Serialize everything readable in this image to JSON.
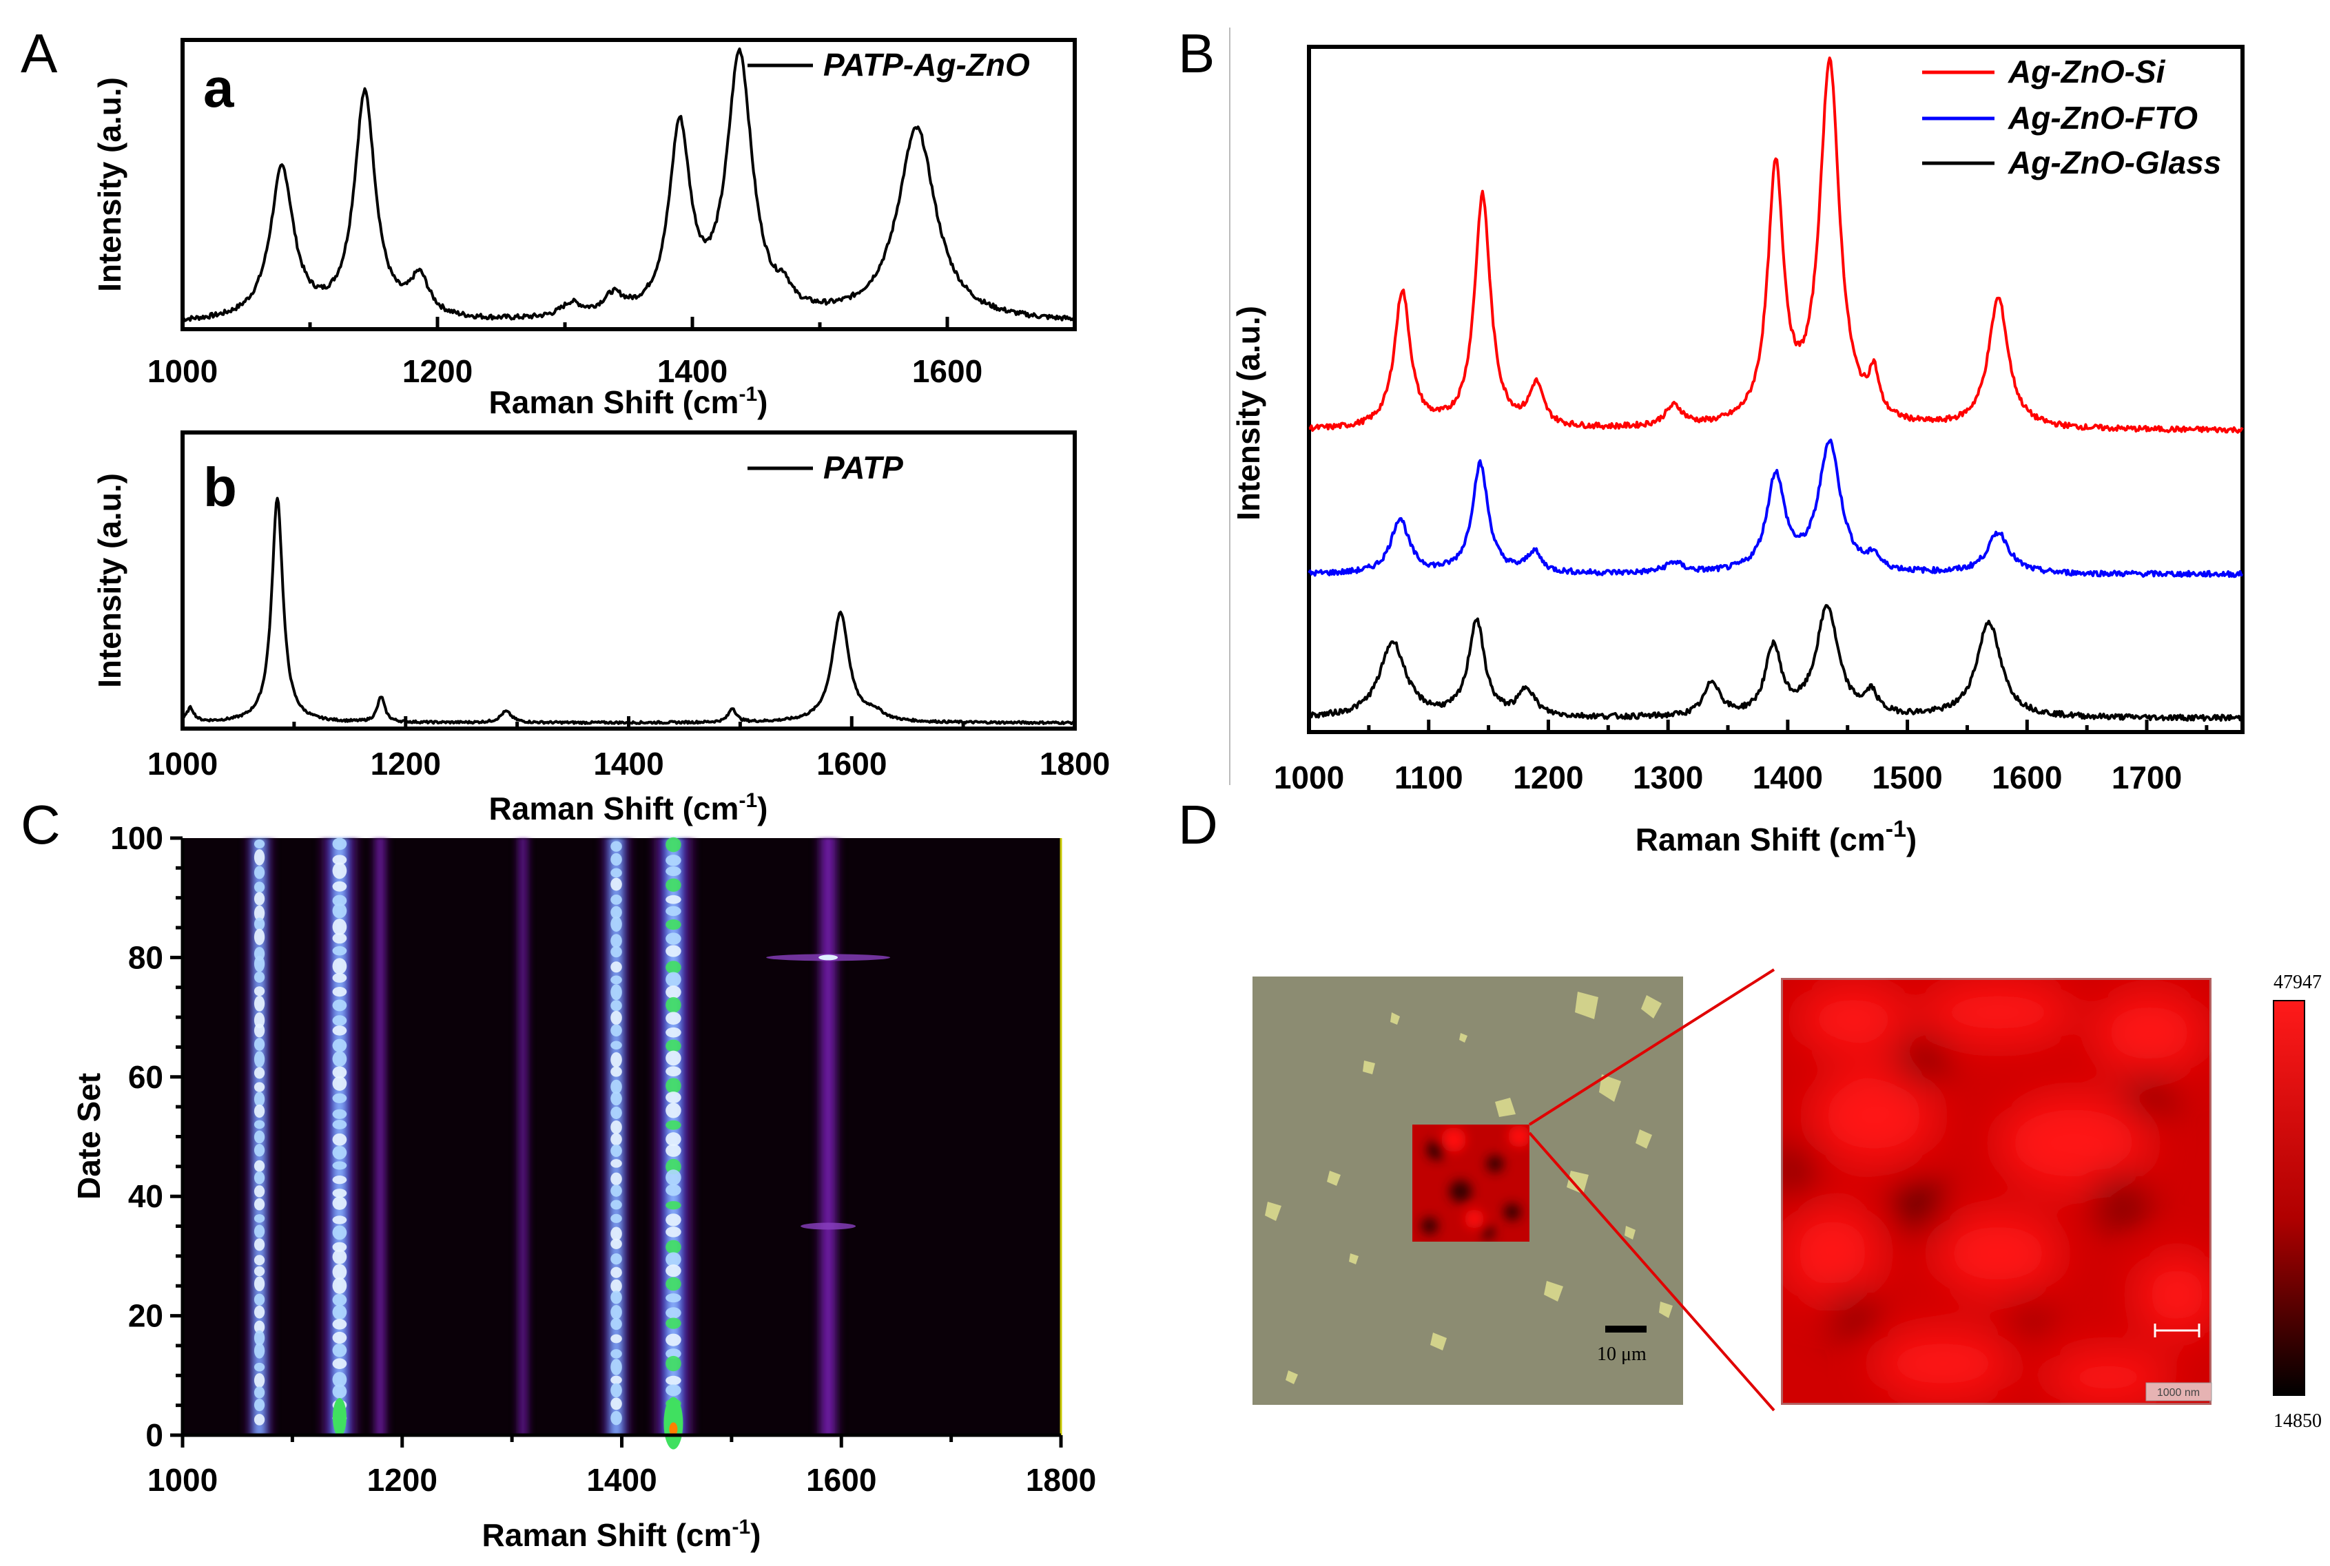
{
  "panels": {
    "A": "A",
    "B": "B",
    "C": "C",
    "D": "D"
  },
  "chart_data": [
    {
      "id": "Aa",
      "type": "line",
      "sublabel": "a",
      "xlabel": "Raman Shift (cm",
      "xlabel_sup": "-1",
      "xlabel_end": ")",
      "ylabel": "Intensity (a.u.)",
      "xlim": [
        1000,
        1700
      ],
      "ylim": [
        0,
        1.05
      ],
      "xticks": [
        1000,
        1200,
        1400,
        1600
      ],
      "series": [
        {
          "name": "PATP-Ag-ZnO",
          "color": "#000000",
          "baseline": 0.02,
          "peaks": [
            [
              1078,
              0.55,
              11
            ],
            [
              1143,
              0.82,
              10
            ],
            [
              1186,
              0.14,
              9
            ],
            [
              1305,
              0.05,
              10
            ],
            [
              1338,
              0.07,
              10
            ],
            [
              1390,
              0.68,
              10
            ],
            [
              1437,
              0.95,
              12
            ],
            [
              1472,
              0.06,
              6
            ],
            [
              1576,
              0.7,
              18
            ]
          ]
        }
      ]
    },
    {
      "id": "Ab",
      "type": "line",
      "sublabel": "b",
      "xlabel": "Raman Shift (cm",
      "xlabel_sup": "-1",
      "xlabel_end": ")",
      "ylabel": "Intensity (a.u.)",
      "xlim": [
        1000,
        1800
      ],
      "ylim": [
        0,
        1.05
      ],
      "xticks": [
        1000,
        1200,
        1400,
        1600,
        1800
      ],
      "series": [
        {
          "name": "PATP",
          "color": "#000000",
          "baseline": 0.02,
          "peaks": [
            [
              1007,
              0.05,
              4
            ],
            [
              1085,
              0.8,
              6
            ],
            [
              1178,
              0.09,
              4
            ],
            [
              1290,
              0.04,
              6
            ],
            [
              1493,
              0.05,
              4
            ],
            [
              1590,
              0.39,
              9
            ],
            [
              1620,
              0.03,
              10
            ]
          ]
        }
      ]
    },
    {
      "id": "B",
      "type": "line",
      "xlabel": "Raman Shift (cm",
      "xlabel_sup": "-1",
      "xlabel_end": ")",
      "ylabel": "Intensity (a.u.)",
      "xlim": [
        1000,
        1780
      ],
      "ylim": [
        0,
        1.0
      ],
      "xticks": [
        1000,
        1100,
        1200,
        1300,
        1400,
        1500,
        1600,
        1700
      ],
      "legend": "top-right",
      "series": [
        {
          "name": "Ag-ZnO-Si",
          "color": "#ff0000",
          "baseline": 0.44,
          "peaks": [
            [
              1078,
              0.2,
              8
            ],
            [
              1145,
              0.34,
              8
            ],
            [
              1190,
              0.06,
              7
            ],
            [
              1305,
              0.03,
              9
            ],
            [
              1390,
              0.37,
              8
            ],
            [
              1435,
              0.53,
              10
            ],
            [
              1472,
              0.06,
              5
            ],
            [
              1576,
              0.19,
              10
            ]
          ]
        },
        {
          "name": "Ag-ZnO-FTO",
          "color": "#0000ff",
          "baseline": 0.23,
          "peaks": [
            [
              1076,
              0.08,
              9
            ],
            [
              1143,
              0.16,
              8
            ],
            [
              1188,
              0.03,
              7
            ],
            [
              1305,
              0.015,
              9
            ],
            [
              1390,
              0.14,
              9
            ],
            [
              1435,
              0.19,
              11
            ],
            [
              1472,
              0.02,
              5
            ],
            [
              1576,
              0.06,
              11
            ]
          ]
        },
        {
          "name": "Ag-ZnO-Glass",
          "color": "#000000",
          "baseline": 0.02,
          "peaks": [
            [
              1070,
              0.11,
              13
            ],
            [
              1140,
              0.14,
              8
            ],
            [
              1182,
              0.04,
              8
            ],
            [
              1337,
              0.05,
              8
            ],
            [
              1388,
              0.1,
              8
            ],
            [
              1433,
              0.16,
              11
            ],
            [
              1470,
              0.03,
              6
            ],
            [
              1568,
              0.14,
              12
            ]
          ]
        }
      ]
    },
    {
      "id": "C",
      "type": "heatmap",
      "xlabel": "Raman Shift (cm",
      "xlabel_sup": "-1",
      "xlabel_end": ")",
      "ylabel": "Date Set",
      "xlim": [
        1000,
        1800
      ],
      "ylim": [
        0,
        100
      ],
      "xticks": [
        1000,
        1200,
        1400,
        1600,
        1800
      ],
      "yticks": [
        0,
        20,
        40,
        60,
        80,
        100
      ],
      "bands": [
        [
          1070,
          0.55
        ],
        [
          1143,
          0.85
        ],
        [
          1180,
          0.18
        ],
        [
          1310,
          0.1
        ],
        [
          1395,
          0.62
        ],
        [
          1447,
          0.95
        ],
        [
          1588,
          0.42
        ]
      ]
    }
  ],
  "panel_D": {
    "scale_bar_left": "10 μm",
    "scale_bar_right": "1000 nm",
    "colorbar_max": "47947",
    "colorbar_min": "14850"
  }
}
